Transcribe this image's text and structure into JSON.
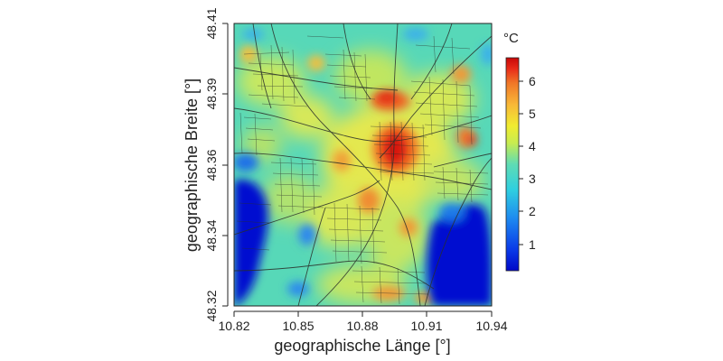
{
  "map": {
    "xlabel": "geographische Länge [°]",
    "ylabel": "geographische Breite [°]",
    "x_ticks": [
      "10.82",
      "10.85",
      "10.88",
      "10.91",
      "10.94"
    ],
    "y_ticks": [
      "48.32",
      "48.34",
      "48.36",
      "48.39",
      "48.41"
    ],
    "x_range": [
      10.82,
      10.94
    ],
    "y_range": [
      48.32,
      48.41
    ],
    "background_color": "#57d8b8",
    "road_color": "#2a2f2a"
  },
  "colorbar": {
    "unit": "°C",
    "ticks": [
      "1",
      "2",
      "3",
      "4",
      "5",
      "6"
    ],
    "range": [
      0,
      6.7
    ],
    "colors": [
      "#0008c8",
      "#0a3ae8",
      "#1e8cf0",
      "#2fcfe0",
      "#5fdcb4",
      "#a8e870",
      "#f0ec30",
      "#f8b838",
      "#f07828",
      "#e82a18",
      "#c80808"
    ]
  }
}
